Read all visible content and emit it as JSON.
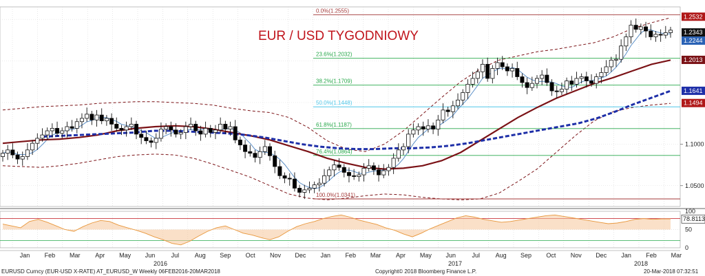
{
  "chart_data": {
    "type": "candlestick",
    "title": "EUR / USD TYGODNIOWY",
    "colors": {
      "title": "#c0141c",
      "up_candle": "#ffffff",
      "down_candle": "#000000",
      "ma_long": "#7b1216",
      "ma_mid": "#1e2fa8",
      "ma_short": "#5b8fc7",
      "bollinger": "#7b1216",
      "fib": "#27a84a",
      "fib_accent": "#4fc6e8",
      "fib_extreme": "#a33a3a"
    },
    "y_axis": {
      "min": 1.025,
      "max": 1.265,
      "ticks": [
        "1.1000",
        "1.0500"
      ]
    },
    "x_axis": {
      "months": [
        "Jan",
        "Feb",
        "Mar",
        "Apr",
        "May",
        "Jun",
        "Jul",
        "Aug",
        "Sep",
        "Oct",
        "Nov",
        "Dec",
        "Jan",
        "Feb",
        "Mar",
        "Apr",
        "May",
        "Jun",
        "Jul",
        "Aug",
        "Sep",
        "Oct",
        "Nov",
        "Dec",
        "Jan",
        "Feb",
        "Mar"
      ],
      "years": [
        "2016",
        "2017",
        "2018"
      ]
    },
    "fibonacci": [
      {
        "label": "0.0%(1.2555)",
        "value": 1.2555
      },
      {
        "label": "23.6%(1.2032)",
        "value": 1.2032
      },
      {
        "label": "38.2%(1.1709)",
        "value": 1.1709
      },
      {
        "label": "50.0%(1.1448)",
        "value": 1.1448
      },
      {
        "label": "61.8%(1.1187)",
        "value": 1.1187
      },
      {
        "label": "76.4%(1.0864)",
        "value": 1.0864
      },
      {
        "label": "100.0%(1.0341)",
        "value": 1.0341
      }
    ],
    "price_tags": [
      {
        "label": "1.2532",
        "value": 1.2532,
        "color": "#b01818"
      },
      {
        "label": "1.2343",
        "value": 1.2343,
        "color": "#111111"
      },
      {
        "label": "1.2244",
        "value": 1.2244,
        "color": "#2a62b5"
      },
      {
        "label": "1.2013",
        "value": 1.2013,
        "color": "#7b1216"
      },
      {
        "label": "1.1641",
        "value": 1.1641,
        "color": "#1e2fa8"
      },
      {
        "label": "1.1494",
        "value": 1.1494,
        "color": "#b01818"
      }
    ],
    "weekly_close": [
      1.089,
      1.093,
      1.087,
      1.082,
      1.085,
      1.093,
      1.101,
      1.107,
      1.111,
      1.116,
      1.119,
      1.113,
      1.116,
      1.121,
      1.119,
      1.127,
      1.131,
      1.136,
      1.129,
      1.135,
      1.128,
      1.131,
      1.124,
      1.119,
      1.117,
      1.121,
      1.124,
      1.112,
      1.108,
      1.104,
      1.102,
      1.107,
      1.118,
      1.121,
      1.117,
      1.112,
      1.114,
      1.121,
      1.124,
      1.116,
      1.112,
      1.119,
      1.114,
      1.117,
      1.124,
      1.118,
      1.121,
      1.105,
      1.099,
      1.091,
      1.089,
      1.084,
      1.091,
      1.097,
      1.086,
      1.073,
      1.062,
      1.059,
      1.058,
      1.047,
      1.042,
      1.045,
      1.047,
      1.051,
      1.053,
      1.062,
      1.069,
      1.075,
      1.072,
      1.066,
      1.062,
      1.061,
      1.063,
      1.071,
      1.074,
      1.069,
      1.063,
      1.068,
      1.072,
      1.083,
      1.093,
      1.097,
      1.112,
      1.117,
      1.121,
      1.118,
      1.122,
      1.118,
      1.129,
      1.141,
      1.139,
      1.146,
      1.153,
      1.162,
      1.172,
      1.179,
      1.187,
      1.196,
      1.179,
      1.191,
      1.198,
      1.193,
      1.188,
      1.191,
      1.181,
      1.174,
      1.168,
      1.173,
      1.179,
      1.183,
      1.174,
      1.164,
      1.163,
      1.166,
      1.176,
      1.172,
      1.179,
      1.181,
      1.176,
      1.173,
      1.181,
      1.186,
      1.193,
      1.201,
      1.202,
      1.218,
      1.229,
      1.243,
      1.238,
      1.241,
      1.236,
      1.229,
      1.232,
      1.231,
      1.234,
      1.237
    ],
    "ma_long": [
      1.101,
      1.103,
      1.105,
      1.106,
      1.108,
      1.111,
      1.116,
      1.119,
      1.121,
      1.122,
      1.121,
      1.118,
      1.114,
      1.11,
      1.105,
      1.098,
      1.091,
      1.083,
      1.077,
      1.072,
      1.07,
      1.071,
      1.074,
      1.08,
      1.09,
      1.104,
      1.118,
      1.132,
      1.144,
      1.155,
      1.164,
      1.173,
      1.18,
      1.188,
      1.196,
      1.201
    ],
    "ma_mid": [
      1.109,
      1.11,
      1.111,
      1.112,
      1.113,
      1.114,
      1.116,
      1.116,
      1.115,
      1.114,
      1.113,
      1.111,
      1.108,
      1.104,
      1.1,
      1.097,
      1.095,
      1.094,
      1.094,
      1.095,
      1.095,
      1.096,
      1.098,
      1.101,
      1.105,
      1.109,
      1.113,
      1.117,
      1.121,
      1.125,
      1.131,
      1.139,
      1.148,
      1.156,
      1.164
    ],
    "bollinger_upper": [
      1.141,
      1.143,
      1.145,
      1.146,
      1.147,
      1.149,
      1.15,
      1.151,
      1.151,
      1.15,
      1.149,
      1.147,
      1.143,
      1.14,
      1.138,
      1.132,
      1.12,
      1.104,
      1.094,
      1.091,
      1.1,
      1.116,
      1.136,
      1.156,
      1.175,
      1.19,
      1.201,
      1.206,
      1.211,
      1.214,
      1.218,
      1.222,
      1.229,
      1.239,
      1.246,
      1.252
    ],
    "bollinger_lower": [
      1.074,
      1.073,
      1.072,
      1.074,
      1.077,
      1.081,
      1.085,
      1.087,
      1.088,
      1.087,
      1.083,
      1.076,
      1.068,
      1.06,
      1.05,
      1.04,
      1.035,
      1.033,
      1.035,
      1.038,
      1.04,
      1.039,
      1.036,
      1.034,
      1.033,
      1.034,
      1.041,
      1.055,
      1.07,
      1.09,
      1.11,
      1.128,
      1.139,
      1.144,
      1.147,
      1.149
    ],
    "oscillator": {
      "label": "78.8113",
      "value": 78.8113,
      "ticks": [
        "100",
        "50",
        "0"
      ],
      "levels": [
        100,
        80,
        50,
        20,
        0
      ],
      "values": [
        65,
        60,
        55,
        72,
        78,
        70,
        60,
        50,
        45,
        58,
        68,
        75,
        72,
        62,
        55,
        48,
        40,
        30,
        22,
        12,
        8,
        18,
        32,
        45,
        55,
        60,
        50,
        40,
        35,
        28,
        22,
        30,
        45,
        58,
        66,
        72,
        80,
        86,
        90,
        84,
        76,
        70,
        64,
        55,
        48,
        38,
        30,
        40,
        52,
        62,
        72,
        82,
        88,
        84,
        78,
        74,
        70,
        72,
        76,
        80,
        84,
        88,
        90,
        86,
        82,
        78,
        74,
        70,
        66,
        68,
        72,
        78,
        80,
        78,
        79,
        79
      ]
    },
    "footer": {
      "left": "EURUSD Curncy (EUR-USD X-RATE) AT_EURUSD_W  Weekly 06FEB2016-20MAR2018",
      "center": "Copyright© 2018 Bloomberg Finance L.P.",
      "right": "20-Mar-2018 07:32:51"
    }
  }
}
